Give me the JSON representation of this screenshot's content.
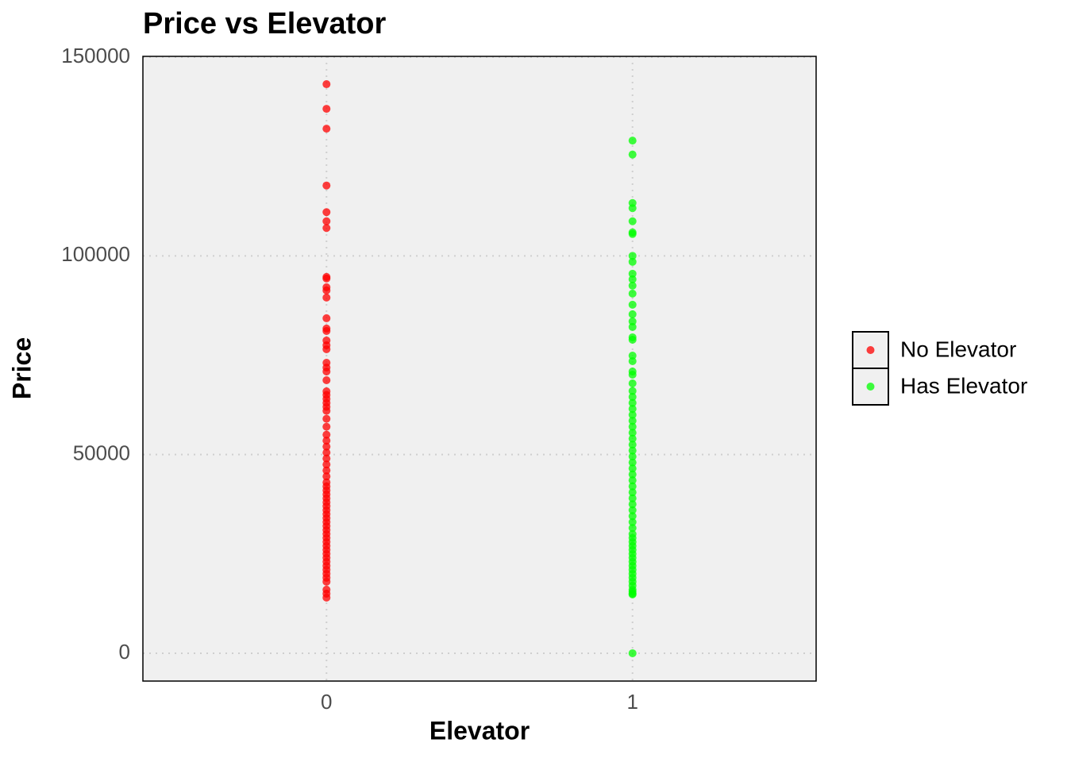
{
  "chart_data": {
    "type": "scatter",
    "title": "Price vs Elevator",
    "x_label": "Elevator",
    "y_label": "Price",
    "xlim": [
      -0.6,
      1.6
    ],
    "ylim": [
      -7000,
      150200
    ],
    "xticks": [
      0,
      1
    ],
    "yticks": [
      0,
      50000,
      100000,
      150000
    ],
    "grid": true,
    "legend": "right",
    "series": [
      {
        "name": "No Elevator",
        "color": "#ff0000",
        "x": [
          0,
          0,
          0,
          0,
          0,
          0,
          0,
          0,
          0,
          0,
          0,
          0,
          0,
          0,
          0,
          0,
          0,
          0,
          0,
          0,
          0,
          0,
          0,
          0,
          0,
          0,
          0,
          0,
          0,
          0,
          0,
          0,
          0,
          0,
          0,
          0,
          0,
          0,
          0,
          0,
          0,
          0,
          0,
          0,
          0,
          0,
          0,
          0,
          0,
          0,
          0,
          0,
          0,
          0,
          0,
          0,
          0,
          0,
          0,
          0,
          0,
          0,
          0,
          0,
          0,
          0,
          0
        ],
        "values": [
          143200,
          137000,
          132000,
          117700,
          111000,
          108700,
          107000,
          94700,
          94300,
          92100,
          91300,
          89500,
          84300,
          81700,
          81100,
          78700,
          77500,
          76500,
          73100,
          71900,
          70900,
          68700,
          65900,
          65000,
          64000,
          63000,
          62000,
          61000,
          59000,
          57000,
          55000,
          53500,
          52000,
          50500,
          49000,
          47500,
          46000,
          44500,
          43000,
          42000,
          41000,
          40000,
          39000,
          38000,
          37000,
          36000,
          35000,
          34000,
          33000,
          32000,
          31000,
          30000,
          29000,
          28000,
          27000,
          26000,
          25000,
          24000,
          23000,
          22000,
          21000,
          20000,
          19000,
          18000,
          16000,
          15000,
          14000
        ]
      },
      {
        "name": "Has Elevator",
        "color": "#00ff00",
        "x": [
          1,
          1,
          1,
          1,
          1,
          1,
          1,
          1,
          1,
          1,
          1,
          1,
          1,
          1,
          1,
          1,
          1,
          1,
          1,
          1,
          1,
          1,
          1,
          1,
          1,
          1,
          1,
          1,
          1,
          1,
          1,
          1,
          1,
          1,
          1,
          1,
          1,
          1,
          1,
          1,
          1,
          1,
          1,
          1,
          1,
          1,
          1,
          1,
          1,
          1,
          1,
          1,
          1,
          1,
          1,
          1,
          1,
          1,
          1,
          1,
          1,
          1,
          1,
          1,
          1,
          1,
          1
        ],
        "values": [
          129000,
          125500,
          113300,
          112000,
          108700,
          105900,
          105500,
          100000,
          98500,
          95500,
          94100,
          92500,
          90500,
          87700,
          85300,
          83500,
          82100,
          79500,
          78900,
          74900,
          73500,
          70900,
          70100,
          67900,
          66000,
          64500,
          63000,
          61500,
          60000,
          58500,
          57000,
          55500,
          54000,
          52500,
          51000,
          49500,
          48000,
          46500,
          45000,
          43500,
          42000,
          40500,
          39000,
          37500,
          36000,
          34500,
          33000,
          31500,
          30000,
          29000,
          28000,
          27000,
          26000,
          25000,
          24000,
          23000,
          22000,
          21000,
          20000,
          19000,
          18000,
          17000,
          16000,
          15500,
          15000,
          14800,
          0
        ]
      }
    ]
  }
}
